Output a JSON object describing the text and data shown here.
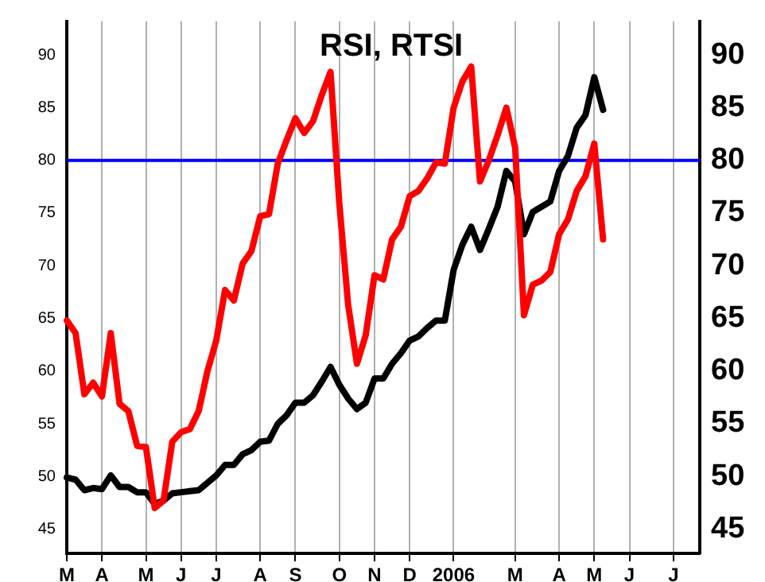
{
  "chart_data": {
    "type": "line",
    "title": "RSI, RTSI",
    "categories": [
      "M",
      null,
      null,
      null,
      "A",
      null,
      null,
      null,
      null,
      "M",
      null,
      null,
      null,
      "J",
      null,
      null,
      null,
      "J",
      null,
      null,
      null,
      null,
      "A",
      null,
      null,
      null,
      "S",
      null,
      null,
      null,
      null,
      "O",
      null,
      null,
      null,
      "N",
      null,
      null,
      null,
      "D",
      null,
      null,
      null,
      null,
      "2006",
      null,
      null,
      null,
      null,
      null,
      null,
      "M",
      null,
      null,
      null,
      null,
      "A",
      null,
      null,
      null,
      "M",
      null,
      null,
      null,
      "J",
      null,
      null,
      null,
      null,
      "J",
      null,
      null,
      null
    ],
    "series": [
      {
        "color": "#ff0000",
        "values": [
          64.8,
          63.6,
          57.8,
          58.9,
          57.6,
          63.6,
          56.9,
          56.2,
          52.9,
          52.8,
          47.0,
          47.7,
          53.3,
          54.2,
          54.5,
          56.2,
          60.0,
          62.9,
          67.7,
          66.7,
          70.2,
          71.4,
          74.7,
          74.9,
          79.7,
          81.9,
          84.0,
          82.6,
          83.7,
          86.2,
          88.4,
          75.9,
          66.3,
          60.7,
          63.4,
          69.1,
          68.7,
          72.5,
          73.7,
          76.6,
          77.1,
          78.3,
          79.8,
          79.7,
          85.0,
          87.5,
          88.9,
          78.0,
          80.0,
          82.4,
          85.0,
          81.2,
          65.3,
          68.2,
          68.6,
          69.4,
          73.0,
          74.4,
          77.1,
          78.5,
          81.6,
          72.5,
          null,
          null,
          null,
          null,
          null,
          null,
          null,
          null,
          null,
          null,
          null
        ]
      },
      {
        "color": "#000000",
        "values": [
          49.9,
          49.7,
          48.7,
          48.9,
          48.8,
          50.1,
          49.0,
          49.0,
          48.5,
          48.5,
          47.4,
          47.7,
          48.4,
          48.5,
          48.6,
          48.7,
          49.4,
          50.1,
          51.1,
          51.1,
          52.1,
          52.5,
          53.3,
          53.4,
          55.0,
          55.8,
          57.0,
          57.0,
          57.7,
          59.0,
          60.4,
          58.7,
          57.4,
          56.4,
          57.0,
          59.3,
          59.3,
          60.7,
          61.7,
          62.9,
          63.3,
          64.1,
          64.8,
          64.8,
          69.6,
          72.0,
          73.7,
          71.5,
          73.5,
          75.6,
          79.0,
          78.0,
          73.0,
          75.1,
          75.6,
          76.1,
          79.0,
          80.4,
          83.1,
          84.3,
          87.9,
          84.8,
          null,
          null,
          null,
          null,
          null,
          null,
          null,
          null,
          null,
          null,
          null
        ]
      }
    ],
    "ylim": [
      42.7,
      93.2
    ],
    "yticks": [
      45,
      50,
      55,
      60,
      65,
      70,
      75,
      80,
      85,
      90
    ],
    "y2lim": [
      42.7,
      93.2
    ],
    "y2ticks": [
      45,
      50,
      55,
      60,
      65,
      70,
      75,
      80,
      85,
      90
    ],
    "ref_lines": [
      {
        "axis": "y",
        "value": 80,
        "color": "#0000ff"
      }
    ],
    "grid": "x",
    "marker": "none",
    "line_style": "solid",
    "legend": false
  }
}
